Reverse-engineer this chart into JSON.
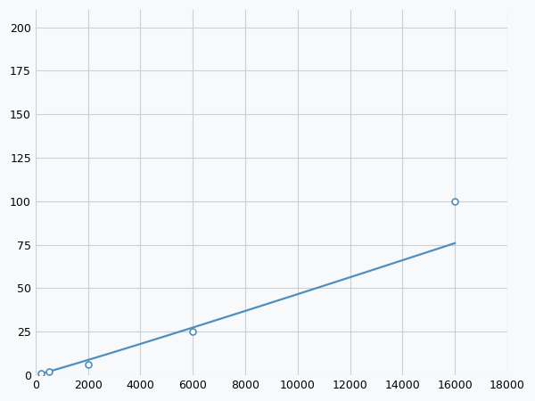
{
  "x_data": [
    200,
    500,
    2000,
    6000,
    16000
  ],
  "y_data": [
    1,
    2,
    6,
    25,
    100
  ],
  "line_color": "#4f8fbf",
  "marker_color": "#4f8fbf",
  "marker_size": 5,
  "line_width": 1.6,
  "xlim": [
    0,
    18000
  ],
  "ylim": [
    0,
    210
  ],
  "xticks": [
    0,
    2000,
    4000,
    6000,
    8000,
    10000,
    12000,
    14000,
    16000,
    18000
  ],
  "yticks": [
    0,
    25,
    50,
    75,
    100,
    125,
    150,
    175,
    200
  ],
  "grid_color": "#c8d0d8",
  "background_color": "#f8f9fa",
  "tick_label_fontsize": 9,
  "power_a": 5.2e-05,
  "power_b": 1.55
}
